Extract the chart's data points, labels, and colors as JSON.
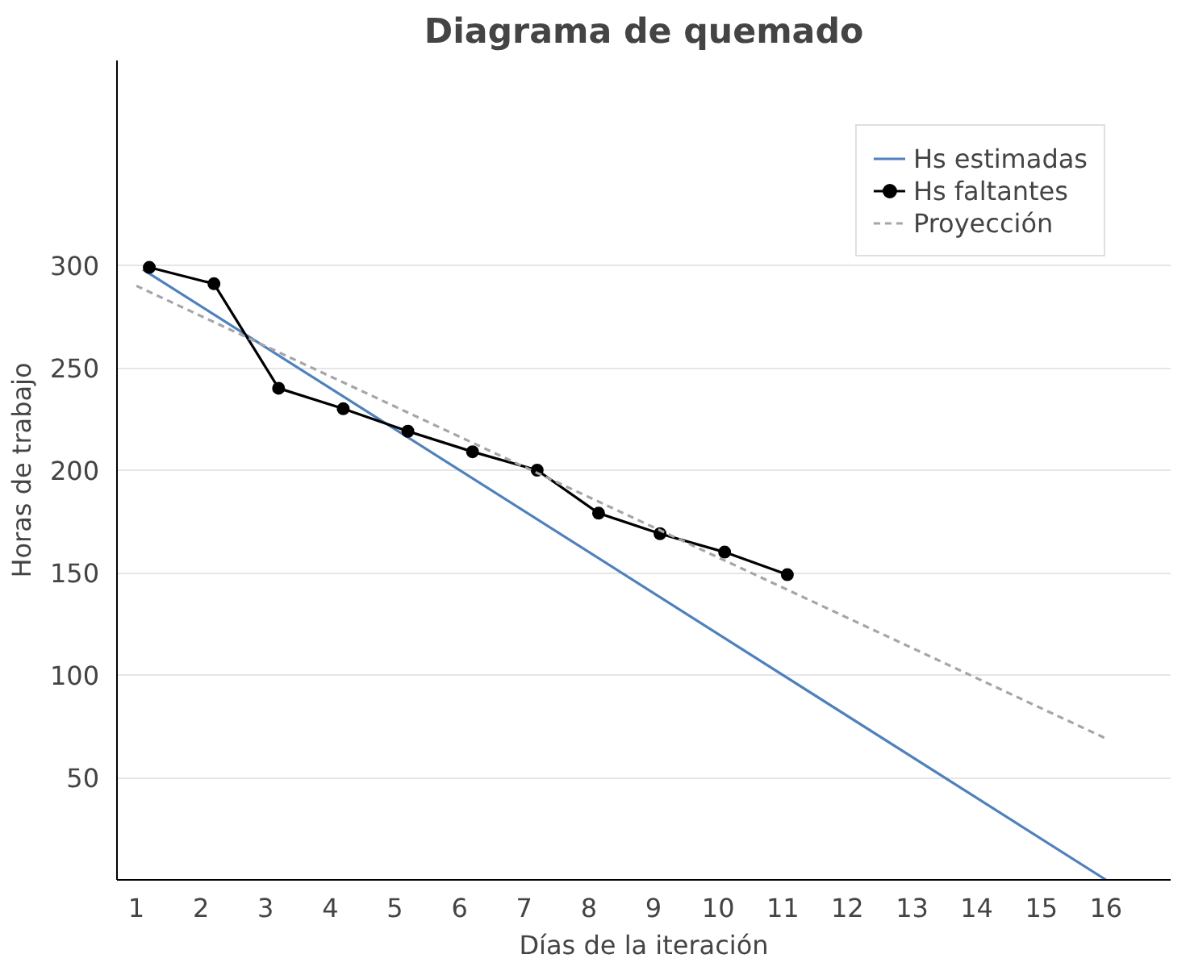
{
  "chart_data": {
    "type": "line",
    "title": "Diagrama de quemado",
    "xlabel": "Días de la iteración",
    "ylabel": "Horas de trabajo",
    "xlim": [
      0.7,
      17
    ],
    "xticks": [
      1,
      2,
      3,
      4,
      5,
      6,
      7,
      8,
      9,
      10,
      11,
      12,
      13,
      14,
      15,
      16
    ],
    "ylim": [
      0,
      400
    ],
    "yticks": [
      50,
      100,
      150,
      200,
      250,
      300
    ],
    "grid": "y",
    "legend": "top right",
    "series": [
      {
        "name": "Hs estimadas",
        "color": "#4f81bd",
        "x": [
          1.1,
          16
        ],
        "values": [
          298,
          0
        ],
        "marker": "none",
        "line_style": "solid"
      },
      {
        "name": "Hs faltantes",
        "color": "#000000",
        "x": [
          1.2,
          2.2,
          3.2,
          4.2,
          5.2,
          6.2,
          7.2,
          8.15,
          9.1,
          10.1,
          11.07
        ],
        "values": [
          299,
          291,
          240,
          230,
          219,
          209,
          200,
          179,
          169,
          160,
          149
        ],
        "marker": "circle",
        "line_style": "solid"
      },
      {
        "name": "Proyección",
        "color": "#a6a6a6",
        "x": [
          1,
          16
        ],
        "values": [
          290,
          69
        ],
        "marker": "none",
        "line_style": "dashed"
      }
    ]
  }
}
